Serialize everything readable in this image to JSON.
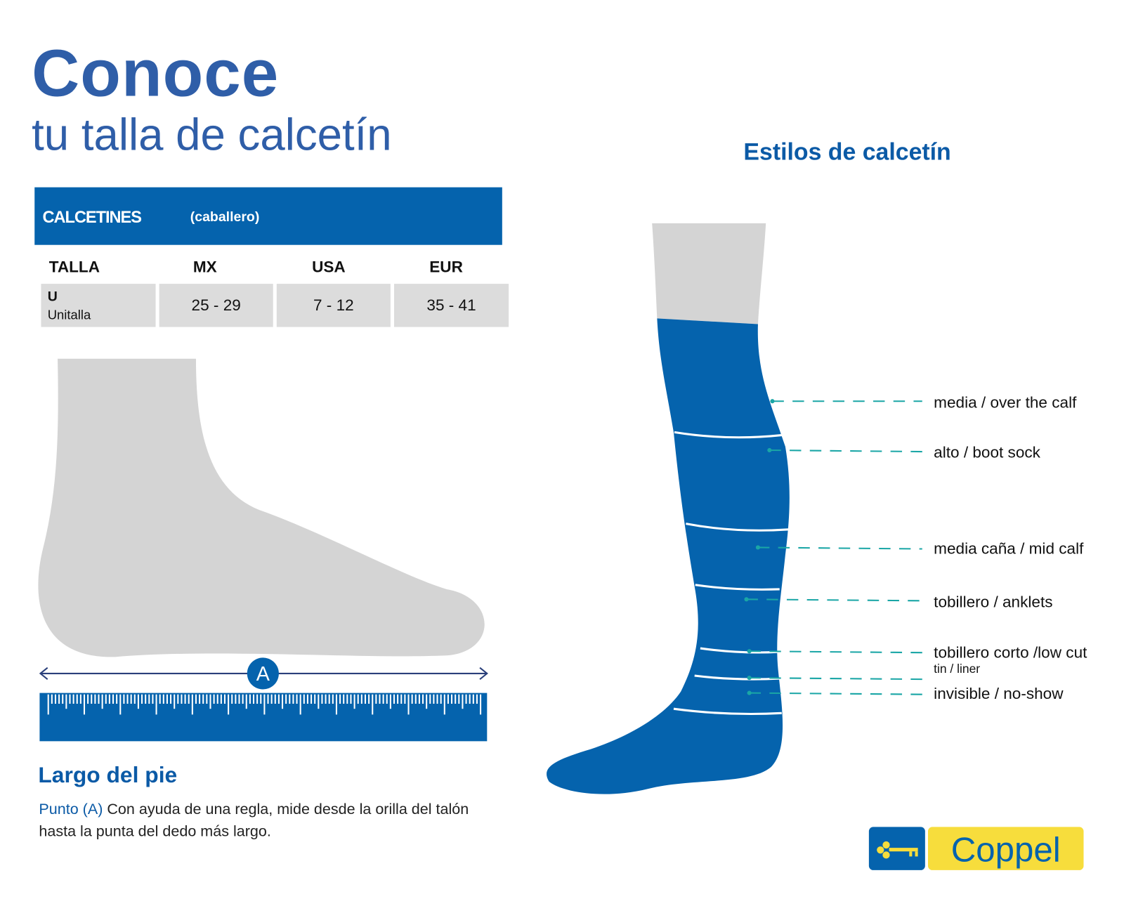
{
  "header": {
    "title": "Conoce",
    "subtitle": "tu talla de calcetín"
  },
  "size_table": {
    "heading": "CALCETINES",
    "heading_note": "(caballero)",
    "columns": [
      "TALLA",
      "MX",
      "USA",
      "EUR"
    ],
    "rows": [
      {
        "talla": "U",
        "talla_note": "Unitalla",
        "mx": "25 - 29",
        "usa": "7 - 12",
        "eur": "35 - 41"
      }
    ]
  },
  "foot": {
    "marker": "A",
    "section_title": "Largo del pie",
    "point_label": "Punto (A)",
    "instructions": "Con ayuda de una regla, mide desde la orilla del talón hasta la punta del dedo más largo."
  },
  "styles": {
    "title": "Estilos de calcetín",
    "items": [
      {
        "label": "media / over the calf"
      },
      {
        "label": "alto / boot sock"
      },
      {
        "label": "media caña / mid calf"
      },
      {
        "label": "tobillero / anklets"
      },
      {
        "label": "tobillero corto /low cut",
        "sublabel": "tin / liner"
      },
      {
        "label": "invisible / no-show"
      }
    ]
  },
  "brand": {
    "name": "Coppel",
    "icon": "key-icon"
  },
  "colors": {
    "primary_blue": "#0563ad",
    "title_blue": "#2f5ea8",
    "gray": "#d4d4d4",
    "teal": "#1aa6a6",
    "yellow": "#f7dd3c"
  }
}
